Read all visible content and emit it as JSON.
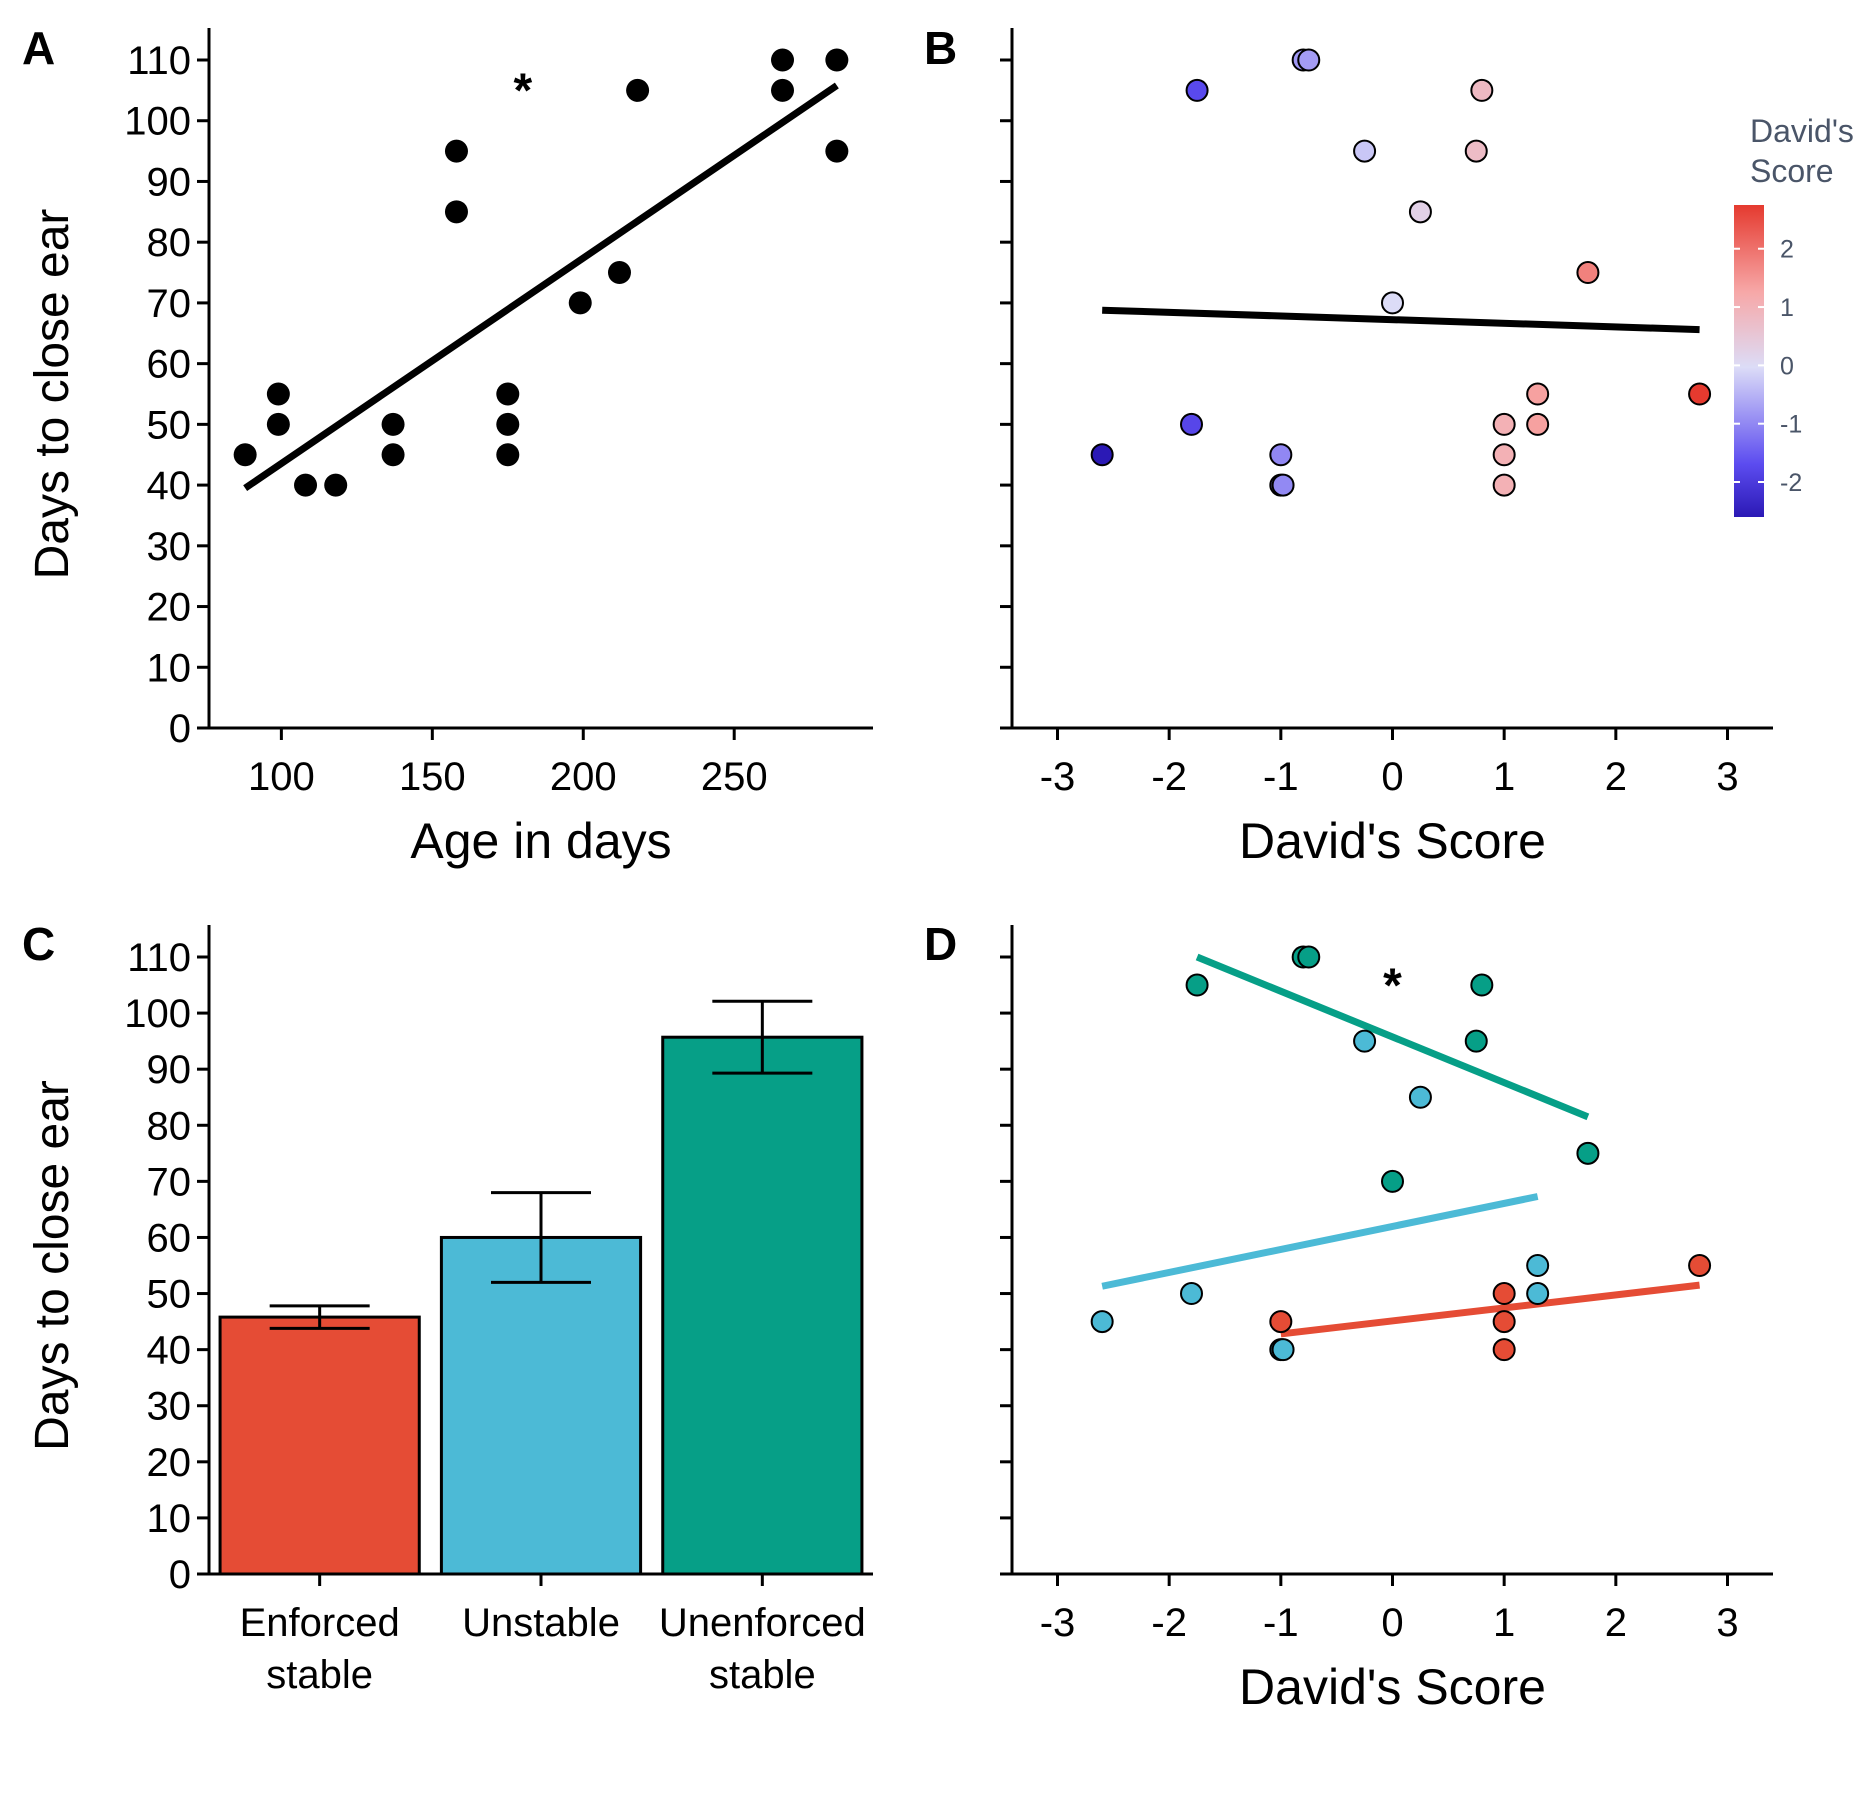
{
  "chart_data": [
    {
      "panel": "A",
      "type": "scatter",
      "xlabel": "Age in days",
      "ylabel": "Days to close ear",
      "annotation": "*",
      "xlim": [
        80,
        292
      ],
      "ylim": [
        0,
        110
      ],
      "xticks": [
        100,
        150,
        200,
        250
      ],
      "yticks": [
        0,
        10,
        20,
        30,
        40,
        50,
        60,
        70,
        80,
        90,
        100,
        110
      ],
      "points": [
        {
          "x": 88,
          "y": 45
        },
        {
          "x": 99,
          "y": 55
        },
        {
          "x": 99,
          "y": 50
        },
        {
          "x": 108,
          "y": 40
        },
        {
          "x": 118,
          "y": 40
        },
        {
          "x": 137,
          "y": 50
        },
        {
          "x": 137,
          "y": 45
        },
        {
          "x": 158,
          "y": 95
        },
        {
          "x": 158,
          "y": 85
        },
        {
          "x": 175,
          "y": 55
        },
        {
          "x": 175,
          "y": 50
        },
        {
          "x": 175,
          "y": 45
        },
        {
          "x": 199,
          "y": 70
        },
        {
          "x": 212,
          "y": 75
        },
        {
          "x": 218,
          "y": 105
        },
        {
          "x": 266,
          "y": 110
        },
        {
          "x": 266,
          "y": 105
        },
        {
          "x": 284,
          "y": 110
        },
        {
          "x": 284,
          "y": 95
        }
      ],
      "fit_line": {
        "x": [
          88,
          284
        ],
        "y": [
          39.5,
          105.8
        ]
      },
      "colors": {
        "points": "#000000",
        "line": "#000000"
      }
    },
    {
      "panel": "B",
      "type": "scatter",
      "xlabel": "David's Score",
      "ylabel": "",
      "xlim": [
        -3.3,
        3.3
      ],
      "ylim": [
        0,
        110
      ],
      "xticks": [
        -3,
        -2,
        -1,
        0,
        1,
        2,
        3
      ],
      "yticks": [
        0,
        10,
        20,
        30,
        40,
        50,
        60,
        70,
        80,
        90,
        100,
        110
      ],
      "legend": {
        "title": "David's Score",
        "type": "colorbar",
        "range": [
          -2.6,
          2.75
        ],
        "ticks": [
          2,
          1,
          0,
          -1,
          -2
        ],
        "colors": [
          "#2b19b5",
          "#5c4cf0",
          "#dcdcf7",
          "#f7a8a8",
          "#e53a2f"
        ],
        "placement": "right"
      },
      "points": [
        {
          "x": -0.8,
          "y": 110
        },
        {
          "x": -0.75,
          "y": 110
        },
        {
          "x": -1.75,
          "y": 105
        },
        {
          "x": 0.8,
          "y": 105
        },
        {
          "x": -0.25,
          "y": 95
        },
        {
          "x": 0.75,
          "y": 95
        },
        {
          "x": 0.25,
          "y": 85
        },
        {
          "x": 1.75,
          "y": 75
        },
        {
          "x": 0.0,
          "y": 70
        },
        {
          "x": 2.75,
          "y": 55
        },
        {
          "x": 1.3,
          "y": 55
        },
        {
          "x": -1.8,
          "y": 50
        },
        {
          "x": 1.0,
          "y": 50
        },
        {
          "x": 1.3,
          "y": 50
        },
        {
          "x": -2.6,
          "y": 45
        },
        {
          "x": -1.0,
          "y": 45
        },
        {
          "x": 1.0,
          "y": 45
        },
        {
          "x": -1.0,
          "y": 40
        },
        {
          "x": -0.98,
          "y": 40
        },
        {
          "x": 1.0,
          "y": 40
        }
      ],
      "fit_line": {
        "x": [
          -2.6,
          2.75
        ],
        "y": [
          68.8,
          65.6
        ]
      },
      "colors": {
        "line": "#000000"
      }
    },
    {
      "panel": "C",
      "type": "bar",
      "xlabel": "",
      "ylabel": "Days to close ear",
      "ylim": [
        0,
        110
      ],
      "yticks": [
        0,
        10,
        20,
        30,
        40,
        50,
        60,
        70,
        80,
        90,
        100,
        110
      ],
      "categories": [
        {
          "line1": "Enforced",
          "line2": "stable"
        },
        {
          "line1": "Unstable",
          "line2": ""
        },
        {
          "line1": "Unenforced",
          "line2": "stable"
        }
      ],
      "values": [
        45.8,
        60.0,
        95.7
      ],
      "errors": [
        2.0,
        8.0,
        6.4
      ],
      "colors": [
        "#e54c35",
        "#4cbad6",
        "#069f87"
      ]
    },
    {
      "panel": "D",
      "type": "scatter",
      "xlabel": "David's Score",
      "ylabel": "",
      "annotation": "*",
      "xlim": [
        -3.3,
        3.3
      ],
      "ylim": [
        0,
        110
      ],
      "xticks": [
        -3,
        -2,
        -1,
        0,
        1,
        2,
        3
      ],
      "yticks": [
        0,
        10,
        20,
        30,
        40,
        50,
        60,
        70,
        80,
        90,
        100,
        110
      ],
      "series": [
        {
          "color": "#069f87",
          "points": [
            {
              "x": -0.8,
              "y": 110
            },
            {
              "x": -0.75,
              "y": 110
            },
            {
              "x": -1.75,
              "y": 105
            },
            {
              "x": 0.8,
              "y": 105
            },
            {
              "x": 0.75,
              "y": 95
            },
            {
              "x": 1.75,
              "y": 75
            },
            {
              "x": 0.0,
              "y": 70
            }
          ],
          "fit_line": {
            "x": [
              -1.75,
              1.75
            ],
            "y": [
              110,
              81.5
            ]
          }
        },
        {
          "color": "#4cbad6",
          "points": [
            {
              "x": -0.25,
              "y": 95
            },
            {
              "x": 0.25,
              "y": 85
            },
            {
              "x": 1.3,
              "y": 55
            },
            {
              "x": 1.3,
              "y": 50
            },
            {
              "x": -1.8,
              "y": 50
            },
            {
              "x": -2.6,
              "y": 45
            },
            {
              "x": -1.0,
              "y": 40
            },
            {
              "x": -0.98,
              "y": 40
            }
          ],
          "fit_line": {
            "x": [
              -2.6,
              1.3
            ],
            "y": [
              51.3,
              67.3
            ]
          }
        },
        {
          "color": "#e54c35",
          "points": [
            {
              "x": 2.75,
              "y": 55
            },
            {
              "x": 1.0,
              "y": 50
            },
            {
              "x": -1.0,
              "y": 45
            },
            {
              "x": 1.0,
              "y": 45
            },
            {
              "x": 1.0,
              "y": 40
            }
          ],
          "fit_line": {
            "x": [
              -1.0,
              2.75
            ],
            "y": [
              42.8,
              51.5
            ]
          }
        }
      ]
    }
  ]
}
